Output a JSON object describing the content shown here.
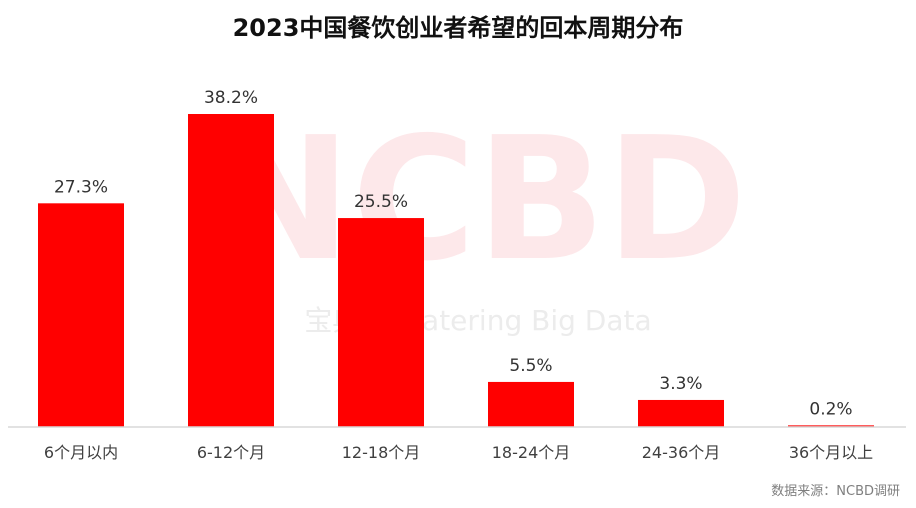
{
  "chart_data": {
    "type": "bar",
    "title": "2023中国餐饮创业者希望的回本周期分布",
    "categories": [
      "6个月以内",
      "6-12个月",
      "12-18个月",
      "18-24个月",
      "24-36个月",
      "36个月以上"
    ],
    "values": [
      27.3,
      38.2,
      25.5,
      5.5,
      3.3,
      0.2
    ],
    "value_labels": [
      "27.3%",
      "38.2%",
      "25.5%",
      "5.5%",
      "3.3%",
      "0.2%"
    ],
    "unit": "%",
    "ylim": [
      0,
      38.2
    ],
    "bar_color": "#ff0000",
    "grid": false,
    "legend": "none"
  },
  "watermark": {
    "letters": "NCBD",
    "line": "宝典 ly Catering Big Data"
  },
  "source": "数据来源：NCBD调研"
}
